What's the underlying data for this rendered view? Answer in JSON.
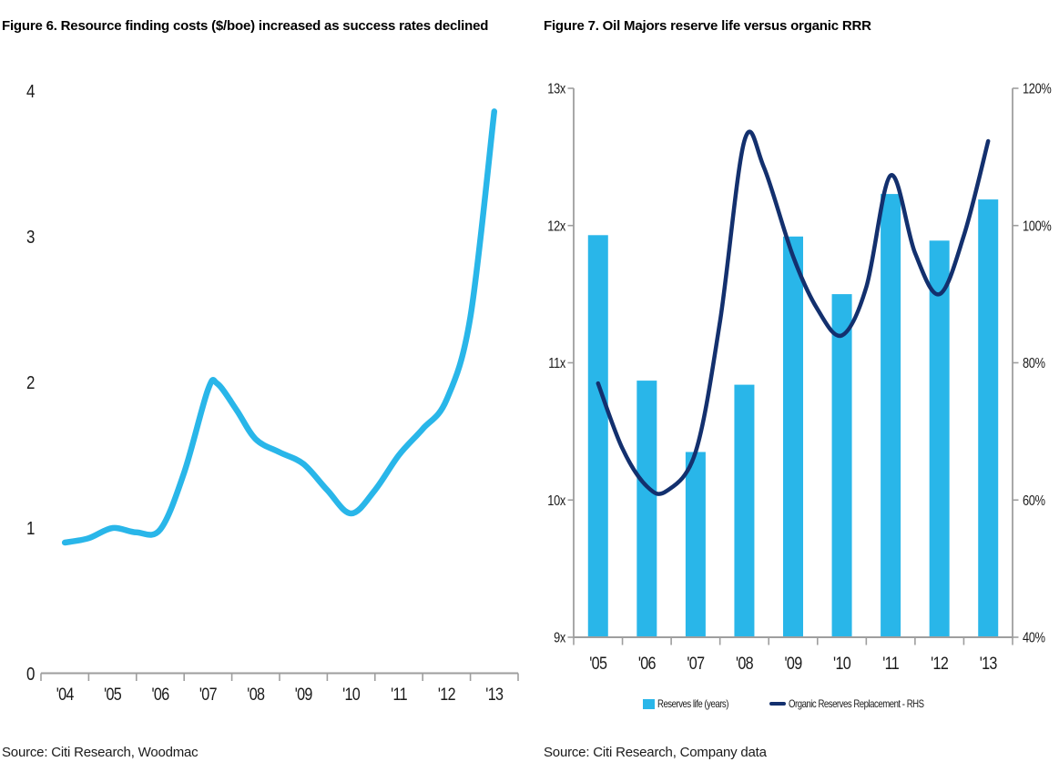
{
  "colors": {
    "cyan": "#29b6e9",
    "navy": "#13306e",
    "axis": "#9e9e9e",
    "text": "#1a1a1a"
  },
  "figure6": {
    "title": "Figure 6. Resource finding costs ($/boe) increased as success rates declined",
    "source": "Source: Citi Research, Woodmac"
  },
  "figure7": {
    "title": "Figure 7. Oil Majors reserve life versus organic RRR",
    "source": "Source: Citi Research, Company data",
    "legend": [
      {
        "label": "Reserves life (years)",
        "swatch": "bar",
        "color": "#29b6e9"
      },
      {
        "label": "Organic Reserves Replacement - RHS",
        "swatch": "line",
        "color": "#13306e"
      }
    ]
  },
  "chart_data": [
    {
      "type": "line",
      "title": "Figure 6. Resource finding costs ($/boe) increased as success rates declined",
      "categories": [
        "'04",
        "'05",
        "'06",
        "'07",
        "'08",
        "'09",
        "'10",
        "'11",
        "'12",
        "'13"
      ],
      "values": [
        0.9,
        1.0,
        0.99,
        1.95,
        1.61,
        1.44,
        1.1,
        1.5,
        1.88,
        3.86
      ],
      "ylim": [
        0,
        4
      ],
      "yticks": [
        0,
        1,
        2,
        3,
        4
      ],
      "grid": false,
      "legend_position": "none",
      "line_color": "#29b6e9",
      "shape_points": [
        [
          2004,
          0.9
        ],
        [
          2004.5,
          0.93
        ],
        [
          2005,
          1.0
        ],
        [
          2005.5,
          0.97
        ],
        [
          2006,
          0.99
        ],
        [
          2006.5,
          1.38
        ],
        [
          2007,
          1.95
        ],
        [
          2007.2,
          1.99
        ],
        [
          2007.6,
          1.81
        ],
        [
          2008,
          1.61
        ],
        [
          2008.5,
          1.52
        ],
        [
          2009,
          1.44
        ],
        [
          2009.5,
          1.26
        ],
        [
          2010,
          1.1
        ],
        [
          2010.5,
          1.26
        ],
        [
          2011,
          1.5
        ],
        [
          2011.5,
          1.68
        ],
        [
          2012,
          1.88
        ],
        [
          2012.5,
          2.45
        ],
        [
          2013,
          3.86
        ]
      ]
    },
    {
      "type": "bar+line",
      "title": "Figure 7. Oil Majors reserve life versus organic RRR",
      "categories": [
        "'05",
        "'06",
        "'07",
        "'08",
        "'09",
        "'10",
        "'11",
        "'12",
        "'13"
      ],
      "series": [
        {
          "name": "Reserves life (years)",
          "type": "bar",
          "axis": "left",
          "color": "#29b6e9",
          "values": [
            11.93,
            10.87,
            10.35,
            10.84,
            11.92,
            11.5,
            12.23,
            11.89,
            12.19
          ]
        },
        {
          "name": "Organic Reserves Replacement - RHS",
          "type": "line",
          "axis": "right",
          "color": "#13306e",
          "values": [
            77,
            62,
            67,
            112.5,
            95.5,
            84,
            107.5,
            90,
            112.5
          ],
          "shape_points": [
            [
              2005,
              77
            ],
            [
              2005.5,
              67.5
            ],
            [
              2006,
              62
            ],
            [
              2006.4,
              61.3
            ],
            [
              2007,
              67
            ],
            [
              2007.5,
              86
            ],
            [
              2008,
              112.3
            ],
            [
              2008.4,
              108.5
            ],
            [
              2009,
              95.5
            ],
            [
              2009.5,
              87.8
            ],
            [
              2010,
              84
            ],
            [
              2010.5,
              91
            ],
            [
              2011,
              107.3
            ],
            [
              2011.5,
              96
            ],
            [
              2012,
              90
            ],
            [
              2012.5,
              98.5
            ],
            [
              2013,
              112.3
            ]
          ]
        }
      ],
      "left_axis": {
        "range": [
          9,
          13
        ],
        "ticks": [
          "9x",
          "10x",
          "11x",
          "12x",
          "13x"
        ]
      },
      "right_axis": {
        "range": [
          40,
          120
        ],
        "ticks": [
          "40%",
          "60%",
          "80%",
          "100%",
          "120%"
        ]
      },
      "grid": false,
      "legend_position": "bottom"
    }
  ]
}
